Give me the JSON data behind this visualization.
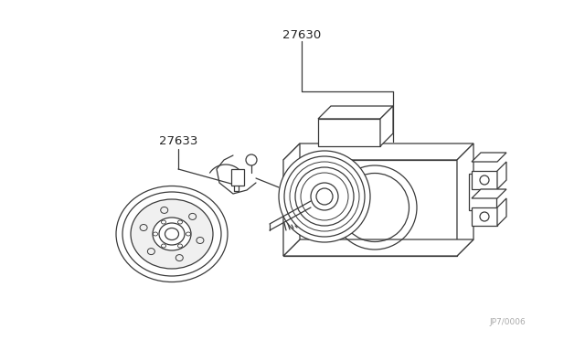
{
  "bg_color": "#ffffff",
  "line_color": "#3a3a3a",
  "label_27630": "27630",
  "label_27633": "27633",
  "watermark": "JP7/0006",
  "fig_width": 6.4,
  "fig_height": 3.72,
  "dpi": 100
}
